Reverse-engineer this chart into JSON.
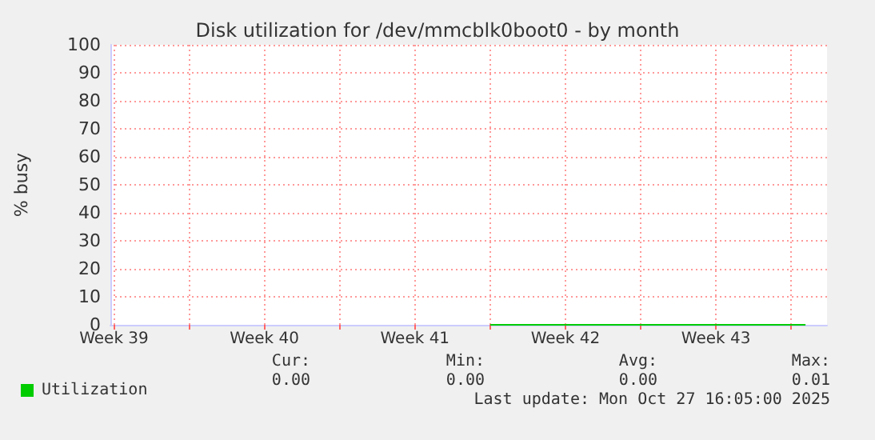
{
  "chart_data": {
    "type": "line",
    "title": "Disk utilization for /dev/mmcblk0boot0 - by month",
    "ylabel": "% busy",
    "xlim": [
      "2025-09-25T08:00",
      "2025-10-28T16:00"
    ],
    "xticks": [
      {
        "value": "2025-09-25T12:00",
        "label": "Week 39"
      },
      {
        "value": "2025-09-29T00:00",
        "label": null
      },
      {
        "value": "2025-10-02T12:00",
        "label": "Week 40"
      },
      {
        "value": "2025-10-06T00:00",
        "label": null
      },
      {
        "value": "2025-10-09T12:00",
        "label": "Week 41"
      },
      {
        "value": "2025-10-13T00:00",
        "label": null
      },
      {
        "value": "2025-10-16T12:00",
        "label": "Week 42"
      },
      {
        "value": "2025-10-20T00:00",
        "label": null
      },
      {
        "value": "2025-10-23T12:00",
        "label": "Week 43"
      },
      {
        "value": "2025-10-27T00:00",
        "label": null
      }
    ],
    "ylim": [
      0,
      100
    ],
    "yticks": [
      0,
      10,
      20,
      30,
      40,
      50,
      60,
      70,
      80,
      90,
      100
    ],
    "grid": true,
    "legend": "bottom left",
    "marker": "none",
    "line_style": "solid",
    "series": [
      {
        "name": "Utilization",
        "color": "#00cc00",
        "x": [
          "2025-10-13T00:00",
          "2025-10-17T00:00",
          "2025-10-21T00:00",
          "2025-10-25T00:00",
          "2025-10-27T16:00"
        ],
        "values": [
          0,
          0,
          0,
          0,
          0
        ]
      }
    ],
    "annotations": [
      "Cur:",
      "Min:",
      "Avg:",
      "Max:",
      "0.00",
      "0.00",
      "0.00",
      "0.01",
      "Last update: Mon Oct 27 16:05:00 2025"
    ]
  }
}
